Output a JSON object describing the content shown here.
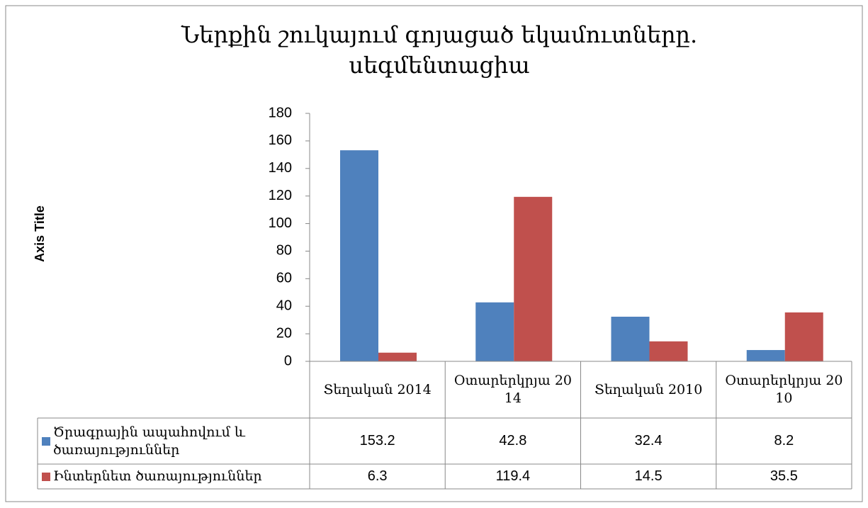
{
  "chart_data": {
    "type": "bar",
    "title": "Ներքին շուկայում գոյացած եկամուտները. սեգմենտացիա",
    "y_axis_label": "Axis Title",
    "categories": [
      "Տեղական 2014",
      "Օտարերկրյա 2014",
      "Տեղական 2010",
      "Օտարերկրյա 2010"
    ],
    "series": [
      {
        "name": "Ծրագրային ապահովում և ծառայություններ",
        "color": "#4f81bd",
        "values": [
          153.2,
          42.8,
          32.4,
          8.2
        ]
      },
      {
        "name": "Ինտերնետ ծառայություններ",
        "color": "#c0504d",
        "values": [
          6.3,
          119.4,
          14.5,
          35.5
        ]
      }
    ],
    "ylim": [
      0,
      180
    ],
    "yticks": [
      0,
      20,
      40,
      60,
      80,
      100,
      120,
      140,
      160,
      180
    ],
    "data_table": true
  }
}
